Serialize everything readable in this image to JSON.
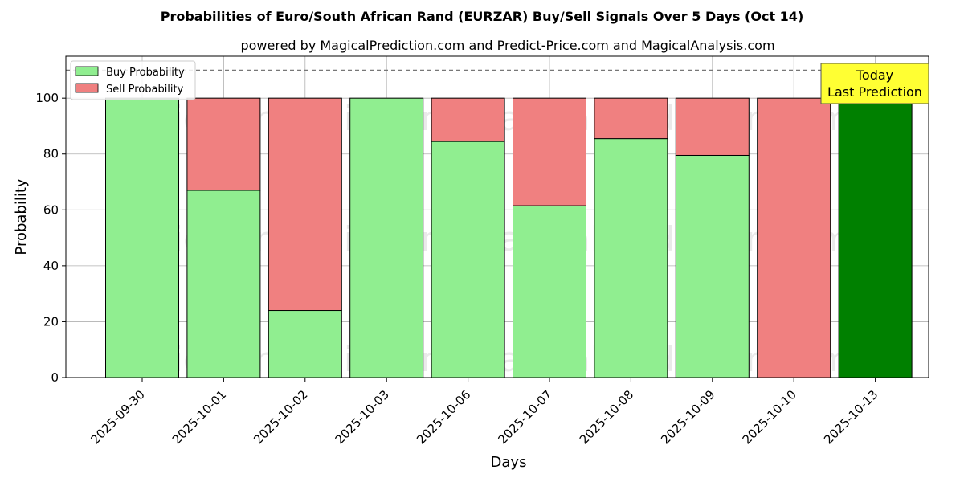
{
  "chart_data": {
    "type": "bar",
    "stacked": true,
    "title": "Probabilities of Euro/South African Rand (EURZAR) Buy/Sell Signals Over 5 Days (Oct 14)",
    "subtitle": "powered by MagicalPrediction.com and Predict-Price.com and MagicalAnalysis.com",
    "xlabel": "Days",
    "ylabel": "Probability",
    "ylim": [
      0,
      115
    ],
    "yticks": [
      0,
      20,
      40,
      60,
      80,
      100
    ],
    "grid": true,
    "legend_position": "top-left",
    "categories": [
      "2025-09-30",
      "2025-10-01",
      "2025-10-02",
      "2025-10-03",
      "2025-10-06",
      "2025-10-07",
      "2025-10-08",
      "2025-10-09",
      "2025-10-10",
      "2025-10-13"
    ],
    "series": [
      {
        "name": "Buy Probability",
        "color": "#90ee90",
        "values": [
          100,
          67,
          24,
          100,
          84.5,
          61.5,
          85.5,
          79.5,
          0,
          100
        ]
      },
      {
        "name": "Sell Probability",
        "color": "#f08080",
        "values": [
          0,
          33,
          76,
          0,
          15.5,
          38.5,
          14.5,
          20.5,
          100,
          0
        ]
      }
    ],
    "highlight": {
      "index": 9,
      "color": "#008000"
    },
    "reference_line": {
      "y": 110,
      "style": "dashed"
    },
    "annotation": {
      "lines": [
        "Today",
        "Last Prediction"
      ],
      "background": "#ffff33"
    },
    "watermarks": [
      "MagicalAnalysis.com",
      "MagicalPrediction.com"
    ]
  }
}
